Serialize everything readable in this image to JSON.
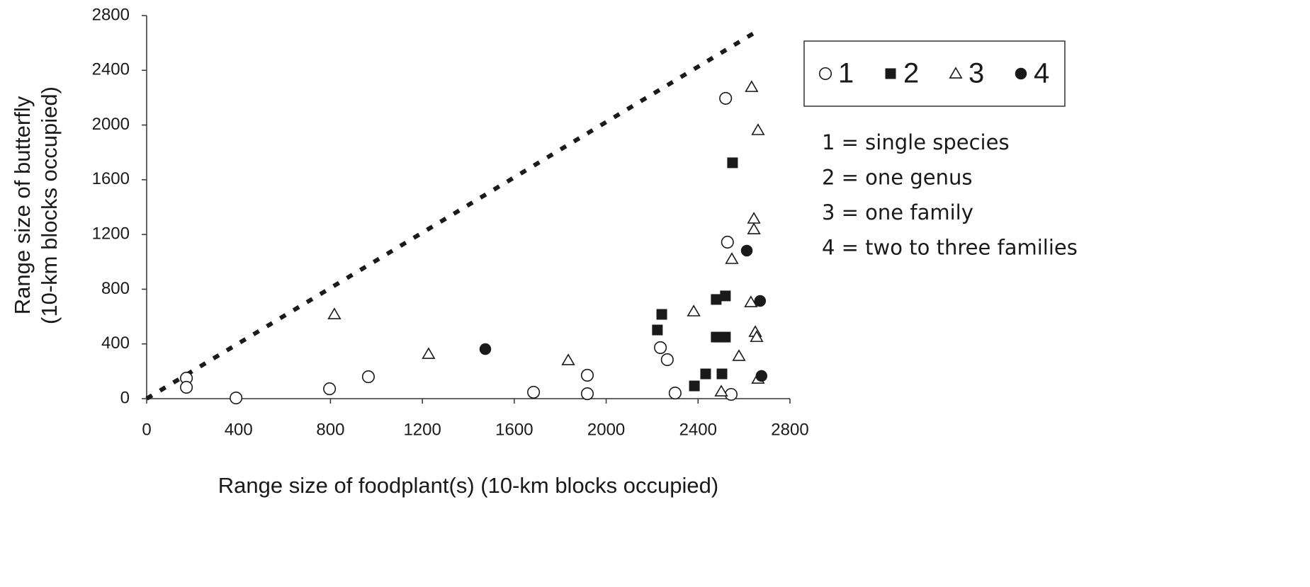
{
  "chart_data": {
    "type": "scatter",
    "xlabel": "Range size of foodplant(s) (10-km blocks occupied)",
    "ylabel": [
      "Range size of butterfly",
      "(10-km blocks occupied)"
    ],
    "xlim": [
      0,
      2800
    ],
    "ylim": [
      0,
      2800
    ],
    "xticks": [
      0,
      400,
      800,
      1200,
      1600,
      2000,
      2400,
      2800
    ],
    "yticks": [
      0,
      400,
      800,
      1200,
      1600,
      2000,
      2400,
      2800
    ],
    "grid": false,
    "legend": "upper right",
    "notes": [
      "1 = single species",
      "2 = one genus",
      "3 = one family",
      "4 = two to three families"
    ],
    "reference_line": {
      "x": [
        0,
        2652
      ],
      "y": [
        0,
        2681
      ],
      "color": "#1a1a1a"
    },
    "series": [
      {
        "name": "1",
        "marker": "circle-open",
        "color": "#1a1a1a",
        "x": [
          173,
          173,
          389,
          796,
          965,
          1684,
          1918,
          1918,
          2236,
          2266,
          2300,
          2520,
          2528,
          2544
        ],
        "values": [
          150,
          83,
          5,
          72,
          160,
          47,
          171,
          36,
          373,
          285,
          41,
          2195,
          1144,
          31
        ]
      },
      {
        "name": "2",
        "marker": "square",
        "color": "#1a1a1a",
        "x": [
          2223,
          2242,
          2384,
          2433,
          2479,
          2519,
          2479,
          2519,
          2504,
          2550
        ],
        "values": [
          502,
          616,
          93,
          181,
          725,
          751,
          450,
          450,
          181,
          1724
        ]
      },
      {
        "name": "3",
        "marker": "triangle-open",
        "color": "#1a1a1a",
        "x": [
          817,
          1227,
          1835,
          2381,
          2501,
          2547,
          2578,
          2633,
          2661,
          2643,
          2643,
          2630,
          2649,
          2655,
          2661
        ],
        "values": [
          616,
          326,
          280,
          637,
          52,
          1020,
          311,
          2277,
          1962,
          1315,
          1237,
          704,
          487,
          450,
          145
        ]
      },
      {
        "name": "4",
        "marker": "circle",
        "color": "#1a1a1a",
        "x": [
          1474,
          2612,
          2670,
          2676
        ],
        "values": [
          362,
          1082,
          714,
          166
        ]
      }
    ]
  }
}
